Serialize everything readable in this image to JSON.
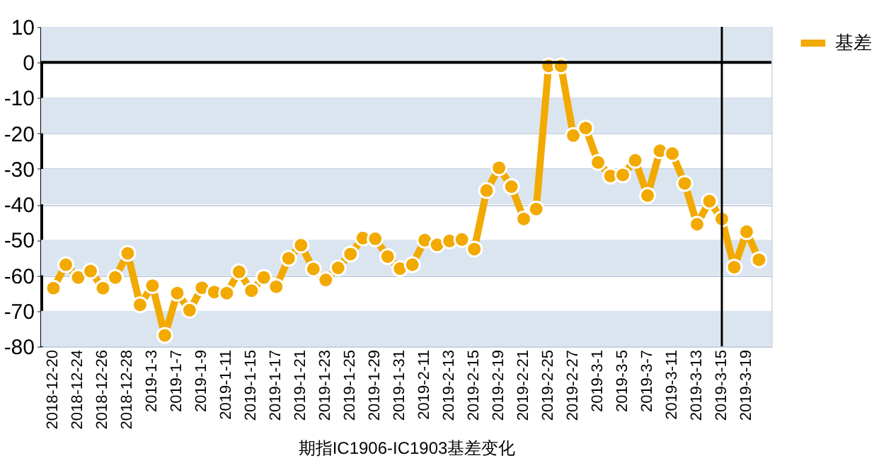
{
  "chart_data": {
    "type": "line",
    "xlabel": "期指IC1906-IC1903基差变化",
    "categories": [
      "2018-12-20",
      null,
      "2018-12-24",
      null,
      "2018-12-26",
      null,
      "2018-12-28",
      null,
      "2019-1-3",
      null,
      "2019-1-7",
      null,
      "2019-1-9",
      null,
      "2019-1-11",
      null,
      "2019-1-15",
      null,
      "2019-1-17",
      null,
      "2019-1-21",
      null,
      "2019-1-23",
      null,
      "2019-1-25",
      null,
      "2019-1-29",
      null,
      "2019-1-31",
      null,
      "2019-2-11",
      null,
      "2019-2-13",
      null,
      "2019-2-15",
      null,
      "2019-2-19",
      null,
      "2019-2-21",
      null,
      "2019-2-25",
      null,
      "2019-2-27",
      null,
      "2019-3-1",
      null,
      "2019-3-5",
      null,
      "2019-3-7",
      null,
      "2019-3-11",
      null,
      "2019-3-13",
      null,
      "2019-3-15",
      null,
      "2019-3-19",
      null
    ],
    "series": [
      {
        "name": "基差",
        "color": "#f2a900",
        "values": [
          -63.6,
          -57,
          -60.6,
          -58.8,
          -63.6,
          -60.6,
          -53.8,
          -68.3,
          -62.9,
          -76.9,
          -65,
          -69.8,
          -63.5,
          -64.7,
          -65,
          -59,
          -64.3,
          -60.6,
          -63.2,
          -55.2,
          -51.5,
          -58.2,
          -61.3,
          -57.9,
          -54,
          -49.5,
          -49.7,
          -54.7,
          -58.1,
          -57,
          -50.1,
          -51.4,
          -50.3,
          -49.9,
          -52.6,
          -36.1,
          -29.7,
          -35,
          -44.1,
          -41.3,
          -1,
          -1,
          -20.6,
          -18.5,
          -28.2,
          -32,
          -31.7,
          -27.6,
          -37.5,
          -24.9,
          -25.7,
          -34.1,
          -45.6,
          -39.1,
          -44.1,
          -57.7,
          -47.7,
          -55.6
        ]
      }
    ],
    "ylim": [
      -80,
      10
    ],
    "yticks": [
      -80,
      -70,
      -60,
      -50,
      -40,
      -30,
      -20,
      -10,
      0,
      10
    ],
    "grid": "y",
    "legend": "right",
    "marker": "circle",
    "line_style": "solid",
    "ref_lines": [
      {
        "axis": "y",
        "value": 0,
        "color": "#000000"
      },
      {
        "axis": "x",
        "value": "2019-3-15",
        "color": "#000000"
      }
    ]
  }
}
